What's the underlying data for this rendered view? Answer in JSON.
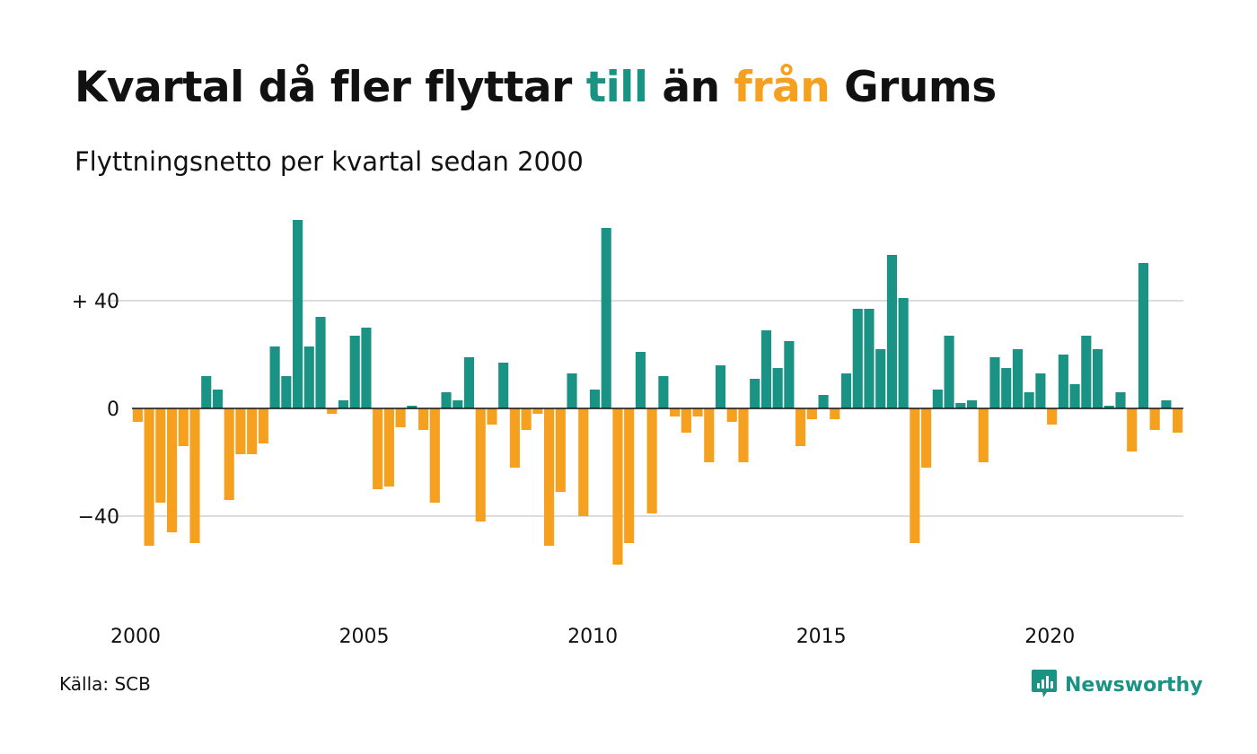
{
  "header": {
    "title_parts": [
      "Kvartal då fler flyttar ",
      "till",
      " än ",
      "från",
      " Grums"
    ],
    "subtitle": "Flyttningsnetto per kvartal sedan 2000"
  },
  "footer": {
    "source": "Källa: SCB",
    "brand": "Newsworthy",
    "brand_icon": "newsworthy-chart-icon"
  },
  "colors": {
    "positive": "#1a9385",
    "negative": "#f5a01e",
    "gridline": "#dddddd",
    "baseline": "#111111",
    "text": "#111111"
  },
  "chart_data": {
    "type": "bar",
    "title": "Kvartal då fler flyttar till än från Grums",
    "subtitle": "Flyttningsnetto per kvartal sedan 2000",
    "xlabel": "",
    "ylabel": "",
    "first_quarter": "2000 Q1",
    "quarters_per_year": 4,
    "x_ticks": [
      "2000",
      "2005",
      "2010",
      "2015",
      "2020"
    ],
    "y_ticks": [
      {
        "value": -40,
        "label": "−40"
      },
      {
        "value": 0,
        "label": "0"
      },
      {
        "value": 40,
        "label": "+ 40"
      }
    ],
    "ylim": [
      -62,
      72
    ],
    "grid": true,
    "legend": "none (colors explained in title: positive = till, negative = från)",
    "values": [
      -5,
      -51,
      -35,
      -46,
      -14,
      -50,
      12,
      7,
      -34,
      -17,
      -17,
      -13,
      23,
      12,
      70,
      23,
      34,
      -2,
      3,
      27,
      30,
      -30,
      -29,
      -7,
      1,
      -8,
      -35,
      6,
      3,
      19,
      -42,
      -6,
      17,
      -22,
      -8,
      -2,
      -51,
      -31,
      13,
      -40,
      7,
      67,
      -58,
      -50,
      21,
      -39,
      12,
      -3,
      -9,
      -3,
      -20,
      16,
      -5,
      -20,
      11,
      29,
      15,
      25,
      -14,
      -4,
      5,
      -4,
      13,
      37,
      37,
      22,
      57,
      41,
      -50,
      -22,
      7,
      27,
      2,
      3,
      -20,
      19,
      15,
      22,
      6,
      13,
      -6,
      20,
      9,
      27,
      22,
      1,
      6,
      -16,
      54,
      -8,
      3,
      -9
    ]
  }
}
